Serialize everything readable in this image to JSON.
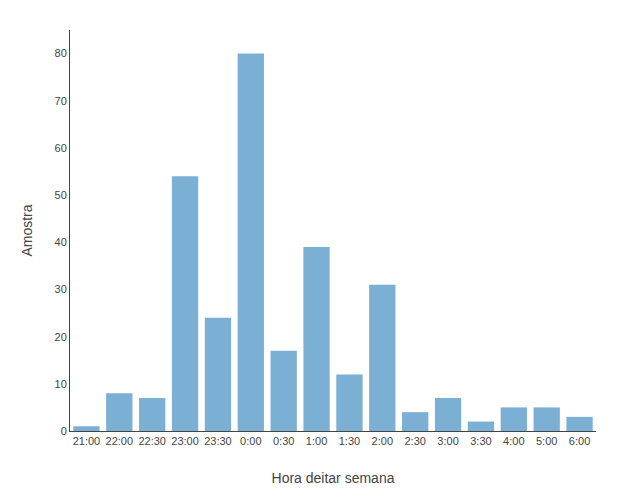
{
  "chart_data": {
    "type": "bar",
    "categories": [
      "21:00",
      "22:00",
      "22:30",
      "23:00",
      "23:30",
      "0:00",
      "0:30",
      "1:00",
      "1:30",
      "2:00",
      "2:30",
      "3:00",
      "3:30",
      "4:00",
      "5:00",
      "6:00"
    ],
    "values": [
      1,
      8,
      7,
      54,
      24,
      80,
      17,
      39,
      12,
      31,
      4,
      7,
      2,
      5,
      5,
      3
    ],
    "color": "#7bafd4",
    "xlabel": "Hora deitar semana",
    "ylabel": "Amostra",
    "ylim": [
      0,
      85
    ],
    "yticks": [
      0,
      10,
      20,
      30,
      40,
      50,
      60,
      70,
      80
    ],
    "grid": false
  }
}
